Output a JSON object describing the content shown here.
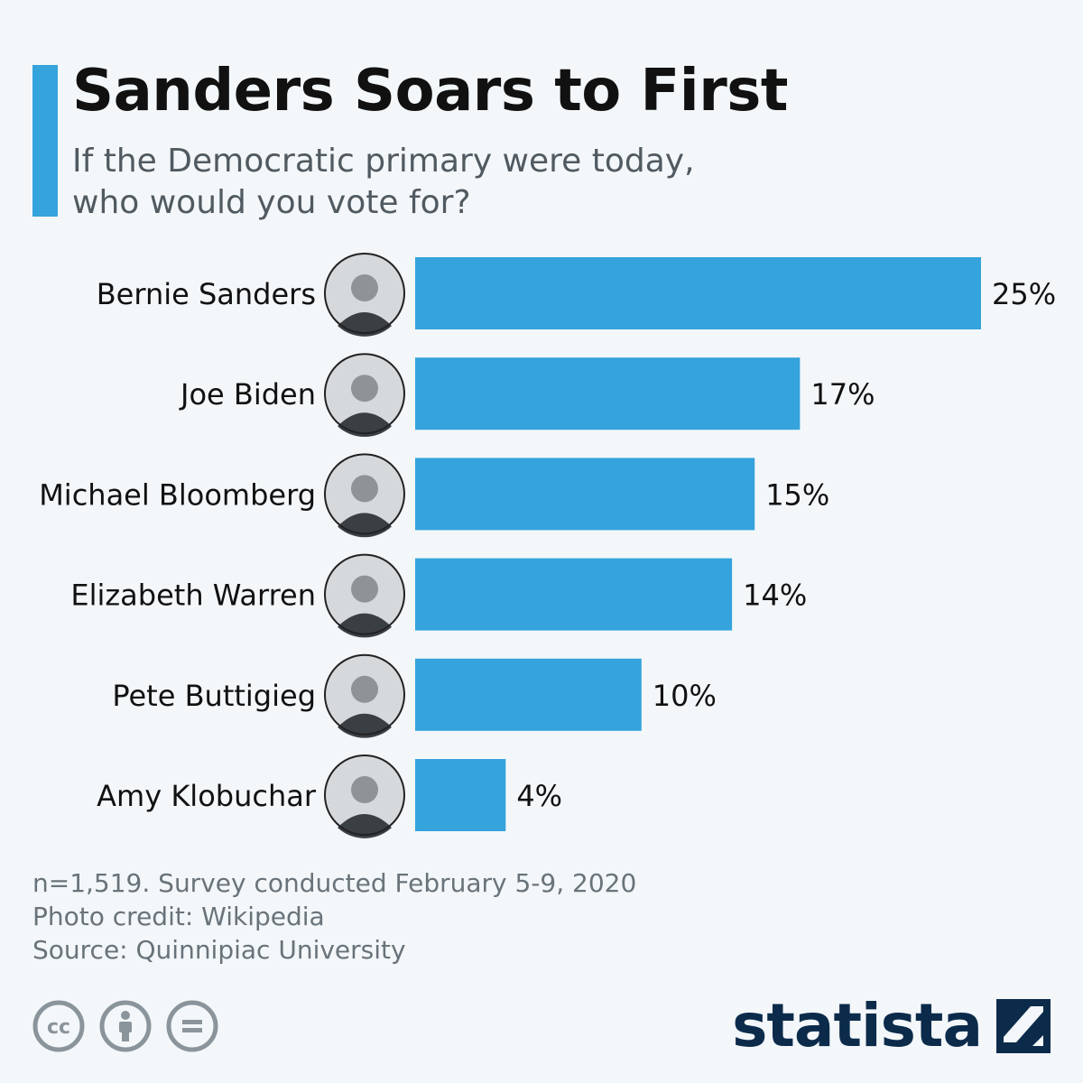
{
  "header": {
    "title": "Sanders Soars to First",
    "subtitle": "If the Democratic primary were today, who would you vote for?"
  },
  "colors": {
    "accent": "#35a3dc",
    "bar": "#35a3dc",
    "brand": "#0c2b4b",
    "background": "#f3f7fa"
  },
  "chart_data": {
    "type": "bar",
    "orientation": "horizontal",
    "categories": [
      "Bernie Sanders",
      "Joe Biden",
      "Michael Bloomberg",
      "Elizabeth Warren",
      "Pete Buttigieg",
      "Amy Klobuchar"
    ],
    "values": [
      25,
      17,
      15,
      14,
      10,
      4
    ],
    "value_labels": [
      "25%",
      "17%",
      "15%",
      "14%",
      "10%",
      "4%"
    ],
    "unit": "%",
    "xlim": [
      0,
      25
    ],
    "grid": false,
    "legend": "none",
    "category_icons": [
      "portrait-photo",
      "portrait-photo",
      "portrait-photo",
      "portrait-photo",
      "portrait-photo",
      "portrait-photo"
    ]
  },
  "footer": {
    "notes": [
      "n=1,519. Survey conducted February 5-9, 2020",
      "Photo credit: Wikipedia",
      "Source: Quinnipiac University"
    ],
    "license_icons": [
      "creative-commons-icon",
      "attribution-icon",
      "no-derivatives-icon"
    ],
    "brand": "statista"
  }
}
